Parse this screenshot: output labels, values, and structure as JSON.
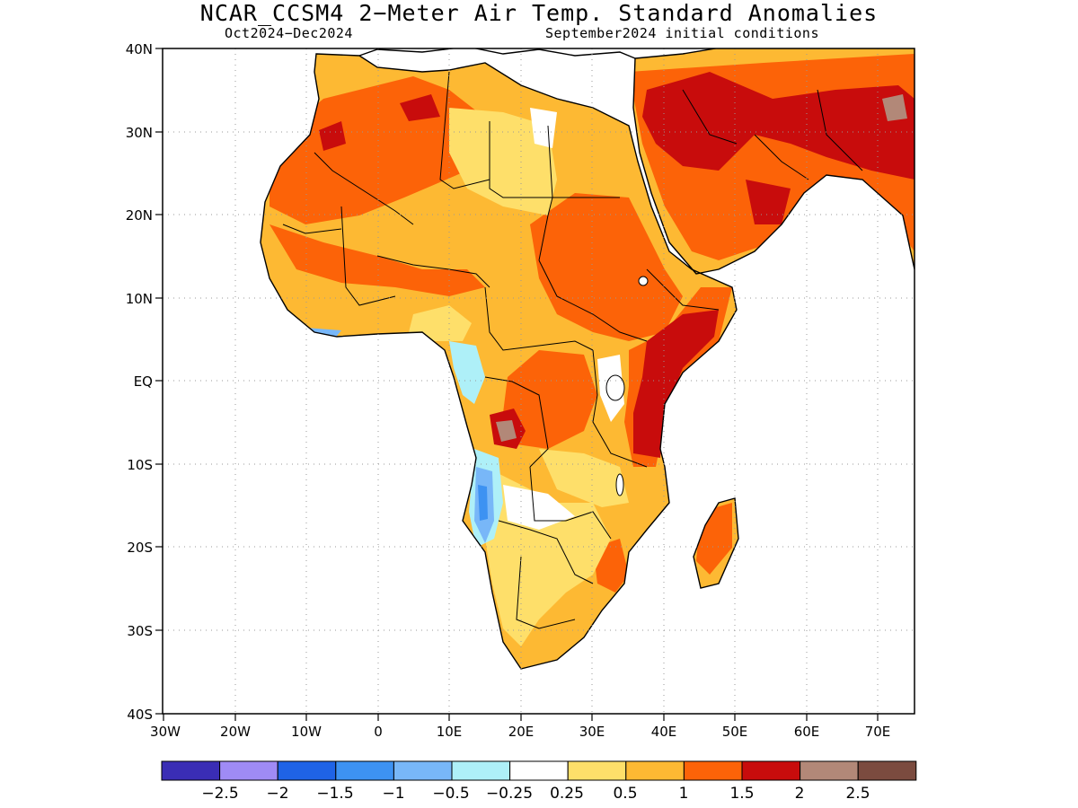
{
  "header": {
    "title": "NCAR_CCSM4 2−Meter Air Temp. Standard Anomalies",
    "period": "Oct2024−Dec2024",
    "init": "September2024 initial conditions"
  },
  "map": {
    "lon_range": [
      -30,
      75
    ],
    "lat_range": [
      -40,
      40
    ],
    "y_ticks": [
      "40N",
      "30N",
      "20N",
      "10N",
      "EQ",
      "10S",
      "20S",
      "30S",
      "40S"
    ],
    "x_ticks": [
      "30W",
      "20W",
      "10W",
      "0",
      "10E",
      "20E",
      "30E",
      "40E",
      "50E",
      "60E",
      "70E"
    ],
    "grid": "dotted",
    "colors": {
      "land_base": "#fdb933",
      "ocean": "#ffffff",
      "outline": "#000000"
    }
  },
  "colorbar": {
    "colors": [
      "#3a2db5",
      "#9f8bf5",
      "#1f63e6",
      "#3d92f2",
      "#78b7f8",
      "#aef0f8",
      "#ffffff",
      "#fedf6a",
      "#fdb933",
      "#fc6308",
      "#c80c0c",
      "#b28878",
      "#7b4b3f"
    ],
    "labels": [
      "−2.5",
      "−2",
      "−1.5",
      "−1",
      "−0.5",
      "−0.25",
      "0.25",
      "0.5",
      "1",
      "1.5",
      "2",
      "2.5"
    ]
  }
}
